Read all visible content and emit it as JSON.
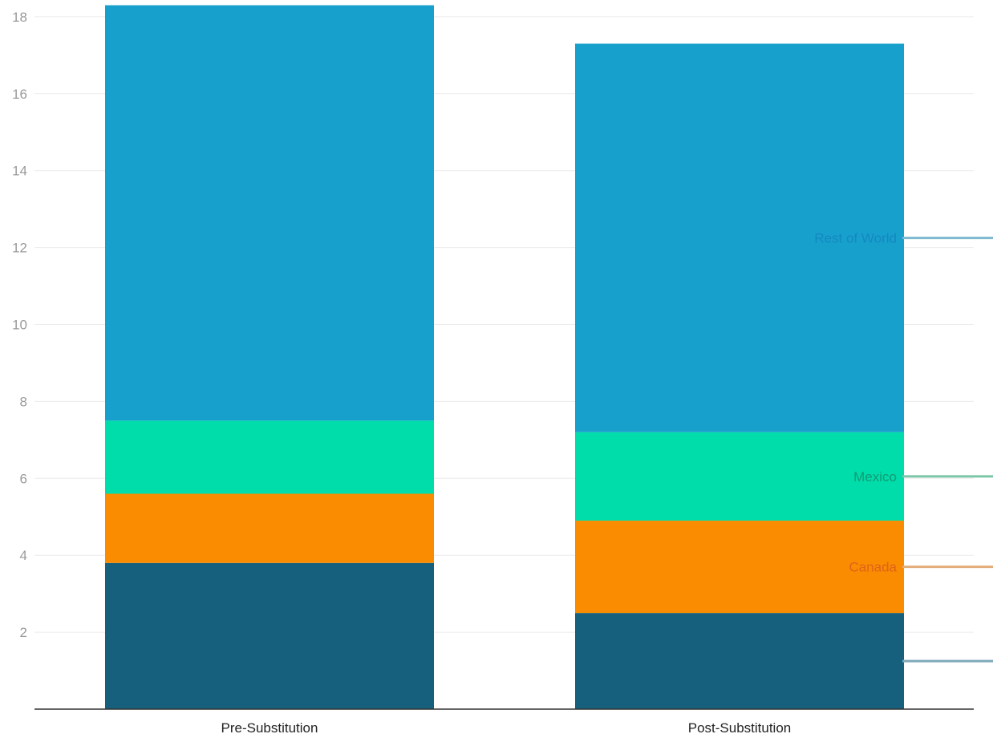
{
  "chart_data": {
    "type": "bar",
    "stacked": true,
    "categories": [
      "Pre-Substitution",
      "Post-Substitution"
    ],
    "series": [
      {
        "name": "",
        "color": "#17607d",
        "values": [
          3.8,
          2.5
        ]
      },
      {
        "name": "Canada",
        "color": "#f98c00",
        "label_color": "#e1631a",
        "line_color": "#e3ad7a",
        "values": [
          1.8,
          2.4
        ]
      },
      {
        "name": "Mexico",
        "color": "#00dcaa",
        "label_color": "#139b75",
        "line_color": "#7cc7a8",
        "values": [
          1.9,
          2.3
        ]
      },
      {
        "name": "Rest of World",
        "color": "#18a0cd",
        "label_color": "#1389bd",
        "line_color": "#7dbad0",
        "values": [
          10.8,
          10.1
        ]
      }
    ],
    "unlabeled_line_color": "#7ea9ba",
    "yticks": [
      2,
      4,
      6,
      8,
      10,
      12,
      14,
      16,
      18
    ],
    "ylim": [
      0,
      18.2
    ],
    "grid": true,
    "legend": "right, direct labels"
  }
}
